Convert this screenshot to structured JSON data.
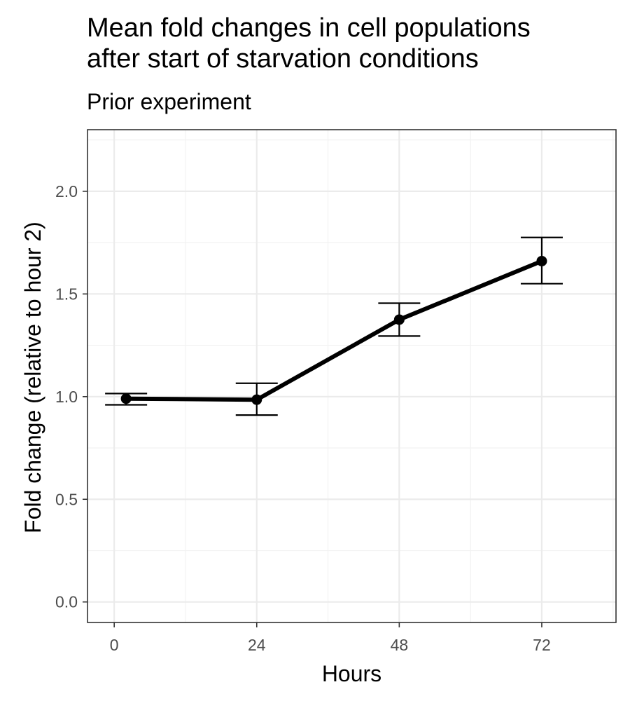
{
  "chart_data": {
    "type": "line",
    "title_lines": [
      "Mean fold changes in cell populations",
      "after start of starvation conditions"
    ],
    "subtitle": "Prior experiment",
    "xlabel": "Hours",
    "ylabel": "Fold change (relative to hour 2)",
    "xlim": [
      -4.5,
      84.5
    ],
    "ylim": [
      -0.1,
      2.3
    ],
    "x_ticks": [
      0,
      24,
      48,
      72
    ],
    "x_tick_labels": [
      "0",
      "24",
      "48",
      "72"
    ],
    "y_ticks": [
      0,
      0.5,
      1,
      1.5,
      2
    ],
    "y_tick_labels": [
      "0.0",
      "0.5",
      "1.0",
      "1.5",
      "2.0"
    ],
    "grid": true,
    "line_color": "#000000",
    "series": [
      {
        "x": [
          2,
          24,
          48,
          72
        ],
        "y": [
          0.99,
          0.985,
          1.375,
          1.66
        ],
        "ymin": [
          0.96,
          0.91,
          1.295,
          1.55
        ],
        "ymax": [
          1.015,
          1.065,
          1.455,
          1.775
        ]
      }
    ]
  }
}
